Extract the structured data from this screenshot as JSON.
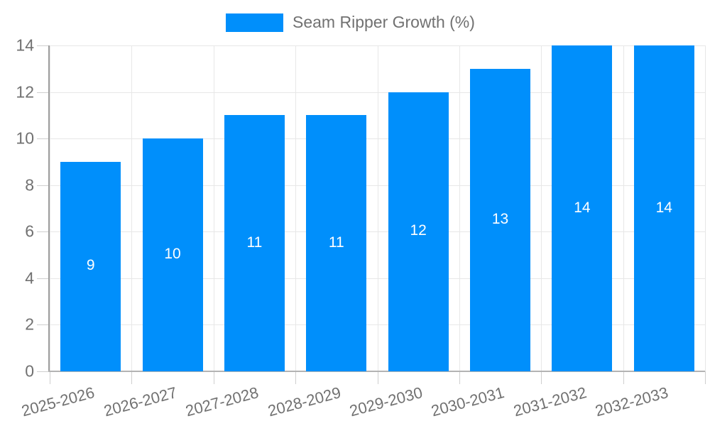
{
  "legend": {
    "label": "Seam Ripper Growth (%)"
  },
  "colors": {
    "bar": "#008ffb",
    "gridline": "#e7e7e7",
    "tick": "#cfcfcf",
    "y_axis_line": "#9e9e9e",
    "x_axis_line": "#b3b3b3",
    "axis_text": "#717171",
    "value_text": "#ffffff",
    "background": "#ffffff"
  },
  "chart_data": {
    "type": "bar",
    "title": "",
    "xlabel": "",
    "ylabel": "",
    "categories": [
      "2025-2026",
      "2026-2027",
      "2027-2028",
      "2028-2029",
      "2029-2030",
      "2030-2031",
      "2031-2032",
      "2032-2033"
    ],
    "series": [
      {
        "name": "Seam Ripper Growth (%)",
        "values": [
          9,
          10,
          11,
          11,
          12,
          13,
          14,
          14
        ]
      }
    ],
    "bar_labels": [
      9,
      10,
      11,
      11,
      12,
      13,
      14,
      14
    ],
    "ylim": [
      0,
      14
    ],
    "yticks": [
      0,
      2,
      4,
      6,
      8,
      10,
      12,
      14
    ],
    "grid": true,
    "legend_position": "top",
    "x_label_rotation": -15
  }
}
